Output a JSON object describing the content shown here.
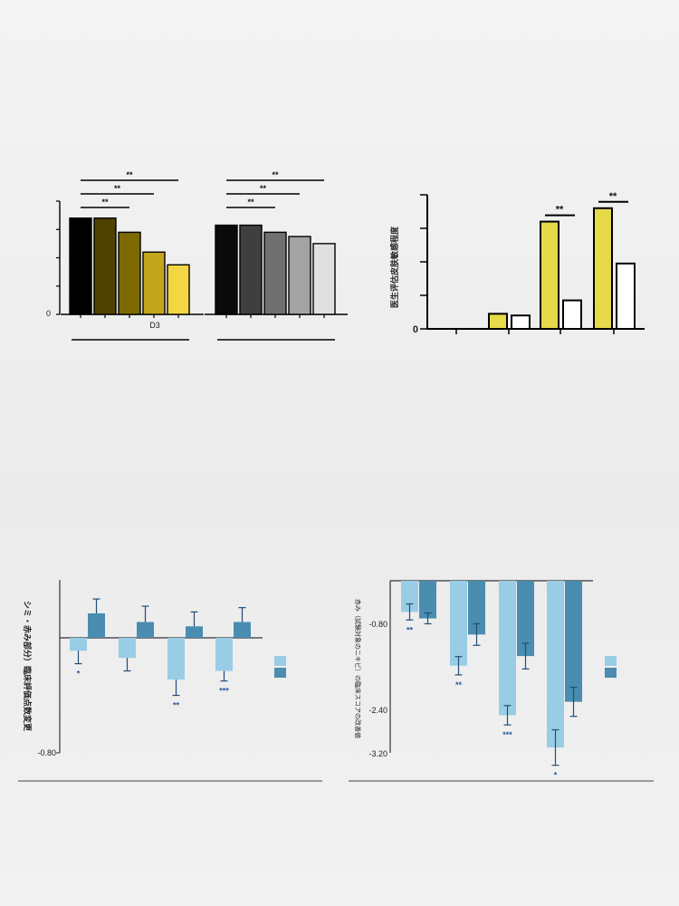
{
  "chart_data": [
    {
      "type": "bar",
      "title": "",
      "ylabel": "",
      "ylim": [
        0,
        4
      ],
      "y_tick_labels": [
        "0"
      ],
      "group_labels": [
        "",
        ""
      ],
      "groups": [
        {
          "categories": [
            "",
            "",
            "",
            "",
            ""
          ],
          "values": [
            3.4,
            3.4,
            2.9,
            2.2,
            1.75
          ],
          "colors": [
            "#000000",
            "#4f4100",
            "#7d6a03",
            "#c3a51b",
            "#f3d742"
          ]
        },
        {
          "categories": [
            "",
            "",
            "",
            "",
            ""
          ],
          "values": [
            3.15,
            3.15,
            2.9,
            2.75,
            2.5
          ],
          "colors": [
            "#0a0a0a",
            "#3f3f3f",
            "#707070",
            "#a3a3a3",
            "#e0e0e0"
          ]
        }
      ],
      "x_text_labels": [
        "D3"
      ],
      "significance": [
        {
          "group": 0,
          "from": 0,
          "to": 2,
          "label": "**"
        },
        {
          "group": 0,
          "from": 0,
          "to": 3,
          "label": "**"
        },
        {
          "group": 0,
          "from": 0,
          "to": 4,
          "label": "**"
        },
        {
          "group": 1,
          "from": 0,
          "to": 2,
          "label": "**"
        },
        {
          "group": 1,
          "from": 0,
          "to": 3,
          "label": "**"
        },
        {
          "group": 1,
          "from": 0,
          "to": 4,
          "label": "**"
        }
      ]
    },
    {
      "type": "bar",
      "title": "",
      "ylabel": "医生评估皮肤敏感程度",
      "ylim": [
        0,
        4
      ],
      "y_tick_labels": [
        "0"
      ],
      "categories": [
        "",
        "",
        "",
        ""
      ],
      "series": [
        {
          "values": [
            0,
            0.45,
            3.2,
            3.6
          ],
          "color": "#e6d94a"
        },
        {
          "values": [
            0,
            0.4,
            0.85,
            1.95
          ],
          "color": "#ffffff"
        }
      ],
      "significance": [
        {
          "category": 2,
          "label": "**"
        },
        {
          "category": 3,
          "label": "**"
        }
      ]
    },
    {
      "type": "bar",
      "title": "",
      "ylabel": "シミ・赤み部分）臨床評価点数変更",
      "ylim": [
        -0.8,
        0.4
      ],
      "y_tick_labels": [
        "-0.80"
      ],
      "categories": [
        "",
        "",
        "",
        ""
      ],
      "series": [
        {
          "values": [
            -0.09,
            -0.14,
            -0.29,
            -0.23
          ],
          "errors": [
            0.09,
            0.09,
            0.11,
            0.07
          ],
          "color": "#99cde5"
        },
        {
          "values": [
            0.17,
            0.11,
            0.08,
            0.11
          ],
          "errors": [
            0.1,
            0.11,
            0.1,
            0.1
          ],
          "color": "#4a8db0"
        }
      ],
      "significance_labels": [
        "*",
        "",
        "**",
        "***"
      ]
    },
    {
      "type": "bar",
      "title": "",
      "ylabel": "赤み（試験対象のニキビ）の臨床スコアの改善値",
      "ylim": [
        -3.2,
        0
      ],
      "y_tick_labels": [
        "-0.80",
        "-2.40",
        "-3.20"
      ],
      "categories": [
        "",
        "",
        "",
        ""
      ],
      "series": [
        {
          "values": [
            -0.58,
            -1.58,
            -2.5,
            -3.1
          ],
          "errors": [
            0.15,
            0.17,
            0.18,
            0.33
          ],
          "color": "#99cde5"
        },
        {
          "values": [
            -0.7,
            -1.0,
            -1.4,
            -2.25
          ],
          "errors": [
            0.1,
            0.2,
            0.24,
            0.27
          ],
          "color": "#4a8db0"
        }
      ],
      "significance_labels": [
        "**",
        "**",
        "***",
        "*"
      ]
    }
  ]
}
